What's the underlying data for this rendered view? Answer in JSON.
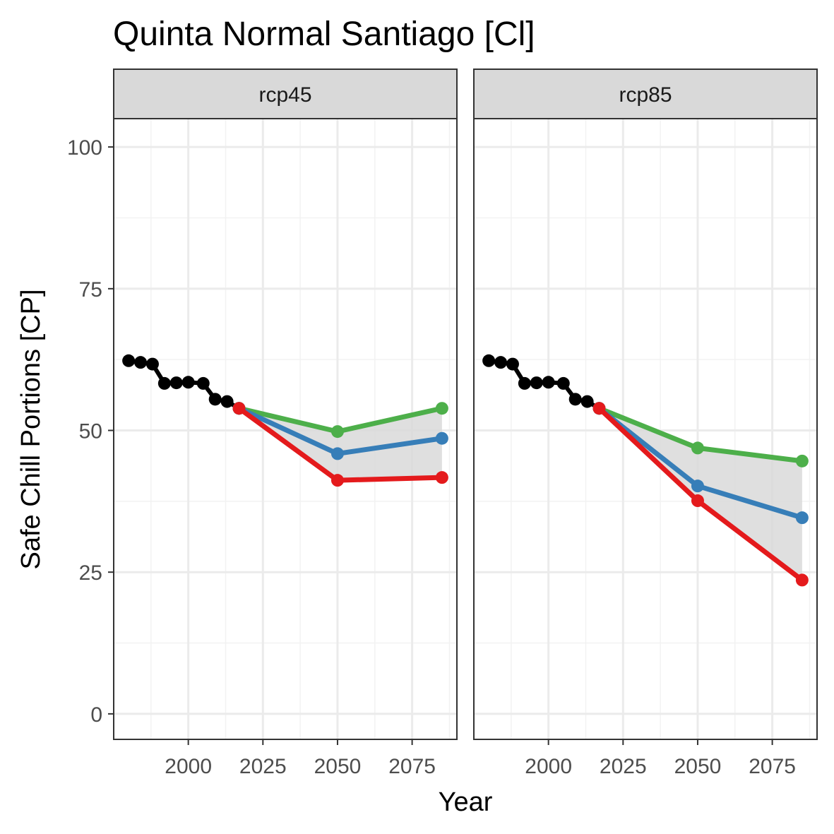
{
  "chart_data": {
    "type": "line",
    "title": "Quinta Normal Santiago [Cl]",
    "xlabel": "Year",
    "ylabel": "Safe Chill Portions [CP]",
    "xlim": [
      1975,
      2090
    ],
    "ylim": [
      -4.5,
      105
    ],
    "x_ticks": [
      2000,
      2025,
      2050,
      2075
    ],
    "y_ticks": [
      0,
      25,
      50,
      75,
      100
    ],
    "grid": true,
    "legend": "none",
    "colors": {
      "historic": "#000000",
      "optimistic": "#4daf4a",
      "median": "#377eb8",
      "pessimistic": "#e41a1c",
      "ribbon": "#d9d9d9"
    },
    "historic": {
      "x": [
        1980,
        1984,
        1988,
        1992,
        1996,
        2000,
        2005,
        2009,
        2013,
        2017
      ],
      "y": [
        62.3,
        62.0,
        61.7,
        58.3,
        58.4,
        58.5,
        58.3,
        55.5,
        55.1,
        53.9
      ]
    },
    "panels": [
      {
        "label": "rcp45",
        "x": [
          2017,
          2050,
          2085
        ],
        "series": [
          {
            "key": "optimistic",
            "values": [
              53.9,
              49.8,
              53.9
            ]
          },
          {
            "key": "median",
            "values": [
              53.9,
              45.9,
              48.6
            ]
          },
          {
            "key": "pessimistic",
            "values": [
              53.9,
              41.2,
              41.7
            ]
          }
        ]
      },
      {
        "label": "rcp85",
        "x": [
          2017,
          2050,
          2085
        ],
        "series": [
          {
            "key": "optimistic",
            "values": [
              53.9,
              46.9,
              44.6
            ]
          },
          {
            "key": "median",
            "values": [
              53.9,
              40.2,
              34.6
            ]
          },
          {
            "key": "pessimistic",
            "values": [
              53.9,
              37.6,
              23.6
            ]
          }
        ]
      }
    ]
  }
}
